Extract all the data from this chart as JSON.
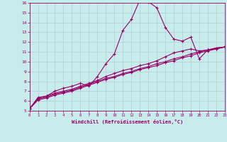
{
  "xlabel": "Windchill (Refroidissement éolien,°C)",
  "background_color": "#c8ecec",
  "grid_color": "#b0d0d0",
  "line_color": "#990066",
  "xlim": [
    0,
    23
  ],
  "ylim": [
    5,
    16
  ],
  "xticks": [
    0,
    1,
    2,
    3,
    4,
    5,
    6,
    7,
    8,
    9,
    10,
    11,
    12,
    13,
    14,
    15,
    16,
    17,
    18,
    19,
    20,
    21,
    22,
    23
  ],
  "yticks": [
    5,
    6,
    7,
    8,
    9,
    10,
    11,
    12,
    13,
    14,
    15,
    16
  ],
  "line1_x": [
    0,
    1,
    2,
    3,
    4,
    5,
    6,
    7,
    8,
    9,
    10,
    11,
    12,
    13,
    14,
    15,
    16,
    17,
    18,
    19,
    20,
    21,
    22,
    23
  ],
  "line1_y": [
    5.2,
    6.35,
    6.5,
    7.0,
    7.3,
    7.5,
    7.8,
    7.5,
    8.5,
    9.8,
    10.8,
    13.2,
    14.3,
    16.3,
    16.1,
    15.5,
    13.5,
    12.3,
    12.1,
    12.5,
    10.3,
    11.2,
    11.4,
    11.5
  ],
  "line2_x": [
    0,
    1,
    2,
    3,
    4,
    5,
    6,
    7,
    8,
    9,
    10,
    11,
    12,
    13,
    14,
    15,
    16,
    17,
    18,
    19,
    20,
    21,
    22,
    23
  ],
  "line2_y": [
    5.2,
    6.3,
    6.5,
    6.8,
    7.0,
    7.2,
    7.5,
    7.8,
    8.1,
    8.5,
    8.8,
    9.1,
    9.3,
    9.6,
    9.8,
    10.1,
    10.5,
    10.9,
    11.1,
    11.3,
    11.1,
    11.2,
    11.4,
    11.5
  ],
  "line3_x": [
    0,
    1,
    2,
    3,
    4,
    5,
    6,
    7,
    8,
    9,
    10,
    11,
    12,
    13,
    14,
    15,
    16,
    17,
    18,
    19,
    20,
    21,
    22,
    23
  ],
  "line3_y": [
    5.2,
    6.2,
    6.4,
    6.7,
    6.9,
    7.1,
    7.4,
    7.7,
    8.0,
    8.3,
    8.5,
    8.8,
    9.0,
    9.3,
    9.5,
    9.8,
    10.0,
    10.3,
    10.5,
    10.8,
    11.0,
    11.2,
    11.3,
    11.5
  ],
  "line4_x": [
    0,
    1,
    2,
    3,
    4,
    5,
    6,
    7,
    8,
    9,
    10,
    11,
    12,
    13,
    14,
    15,
    16,
    17,
    18,
    19,
    20,
    21,
    22,
    23
  ],
  "line4_y": [
    5.2,
    6.1,
    6.3,
    6.6,
    6.8,
    7.0,
    7.3,
    7.6,
    7.9,
    8.2,
    8.4,
    8.7,
    8.9,
    9.2,
    9.4,
    9.6,
    9.9,
    10.1,
    10.4,
    10.6,
    10.9,
    11.1,
    11.3,
    11.5
  ]
}
